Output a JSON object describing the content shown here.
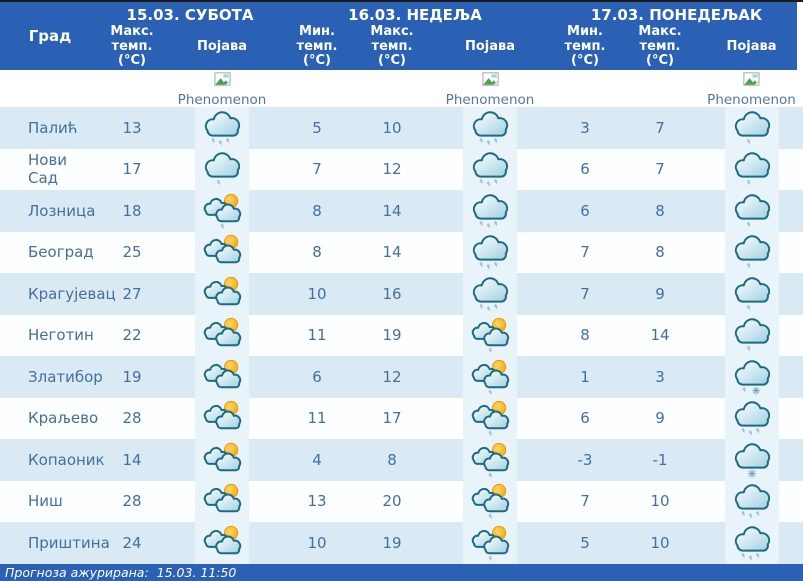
{
  "header": {
    "city_col": "Град",
    "days": [
      {
        "date_label": "15.03. СУБОТА",
        "cols": [
          "Макс.\nтемп.\n(°C)",
          "Појава"
        ]
      },
      {
        "date_label": "16.03. НЕДЕЉА",
        "cols": [
          "Мин.\nтемп.\n(°C)",
          "Макс.\nтемп.\n(°C)",
          "Појава"
        ]
      },
      {
        "date_label": "17.03. ПОНЕДЕЉАК",
        "cols": [
          "Мин.\nтемп.\n(°C)",
          "Макс.\nтемп.\n(°C)",
          "Појава"
        ]
      }
    ],
    "phenomenon_alt": "Phenomenon"
  },
  "rows": [
    {
      "city": "Палић",
      "day1": {
        "max": 13,
        "icon": "rain"
      },
      "day2": {
        "min": 5,
        "max": 10,
        "icon": "rain"
      },
      "day3": {
        "min": 3,
        "max": 7,
        "icon": "light-rain"
      }
    },
    {
      "city": "Нови Сад",
      "day1": {
        "max": 17,
        "icon": "light-rain"
      },
      "day2": {
        "min": 7,
        "max": 12,
        "icon": "rain"
      },
      "day3": {
        "min": 6,
        "max": 7,
        "icon": "light-rain"
      }
    },
    {
      "city": "Лозница",
      "day1": {
        "max": 18,
        "icon": "sun-clouds-rain"
      },
      "day2": {
        "min": 8,
        "max": 14,
        "icon": "rain"
      },
      "day3": {
        "min": 6,
        "max": 8,
        "icon": "light-rain"
      }
    },
    {
      "city": "Београд",
      "day1": {
        "max": 25,
        "icon": "sun-clouds"
      },
      "day2": {
        "min": 8,
        "max": 14,
        "icon": "rain"
      },
      "day3": {
        "min": 7,
        "max": 8,
        "icon": "light-rain"
      }
    },
    {
      "city": "Крагујевац",
      "day1": {
        "max": 27,
        "icon": "sun-clouds"
      },
      "day2": {
        "min": 10,
        "max": 16,
        "icon": "rain"
      },
      "day3": {
        "min": 7,
        "max": 9,
        "icon": "light-rain"
      }
    },
    {
      "city": "Неготин",
      "day1": {
        "max": 22,
        "icon": "sun-clouds"
      },
      "day2": {
        "min": 11,
        "max": 19,
        "icon": "sun-clouds-rain"
      },
      "day3": {
        "min": 8,
        "max": 14,
        "icon": "light-rain"
      }
    },
    {
      "city": "Златибор",
      "day1": {
        "max": 19,
        "icon": "sun-clouds"
      },
      "day2": {
        "min": 6,
        "max": 12,
        "icon": "sun-clouds-rain"
      },
      "day3": {
        "min": 1,
        "max": 3,
        "icon": "rain-snow"
      }
    },
    {
      "city": "Краљево",
      "day1": {
        "max": 28,
        "icon": "sun-clouds"
      },
      "day2": {
        "min": 11,
        "max": 17,
        "icon": "sun-clouds-rain"
      },
      "day3": {
        "min": 6,
        "max": 9,
        "icon": "rain"
      }
    },
    {
      "city": "Копаоник",
      "day1": {
        "max": 14,
        "icon": "sun-clouds"
      },
      "day2": {
        "min": 4,
        "max": 8,
        "icon": "sun-clouds-rain"
      },
      "day3": {
        "min": -3,
        "max": -1,
        "icon": "snow"
      }
    },
    {
      "city": "Ниш",
      "day1": {
        "max": 28,
        "icon": "sun-clouds"
      },
      "day2": {
        "min": 13,
        "max": 20,
        "icon": "sun-clouds-rain"
      },
      "day3": {
        "min": 7,
        "max": 10,
        "icon": "rain"
      }
    },
    {
      "city": "Приштина",
      "day1": {
        "max": 24,
        "icon": "sun-clouds"
      },
      "day2": {
        "min": 10,
        "max": 19,
        "icon": "sun-clouds-rain"
      },
      "day3": {
        "min": 5,
        "max": 10,
        "icon": "rain"
      }
    }
  ],
  "footer": {
    "updated_label": "Прогноза ажурирана:  15.03. 11:50"
  },
  "colors": {
    "header_blue": "#2b61b4",
    "row_blue": "#d9eaf4",
    "row_white": "#fcfeff",
    "icon_strip": "#e9f3fa",
    "text_blue": "#456f9d",
    "sun_orange": "#f59d00",
    "cloud_outline": "#1d6b80"
  }
}
